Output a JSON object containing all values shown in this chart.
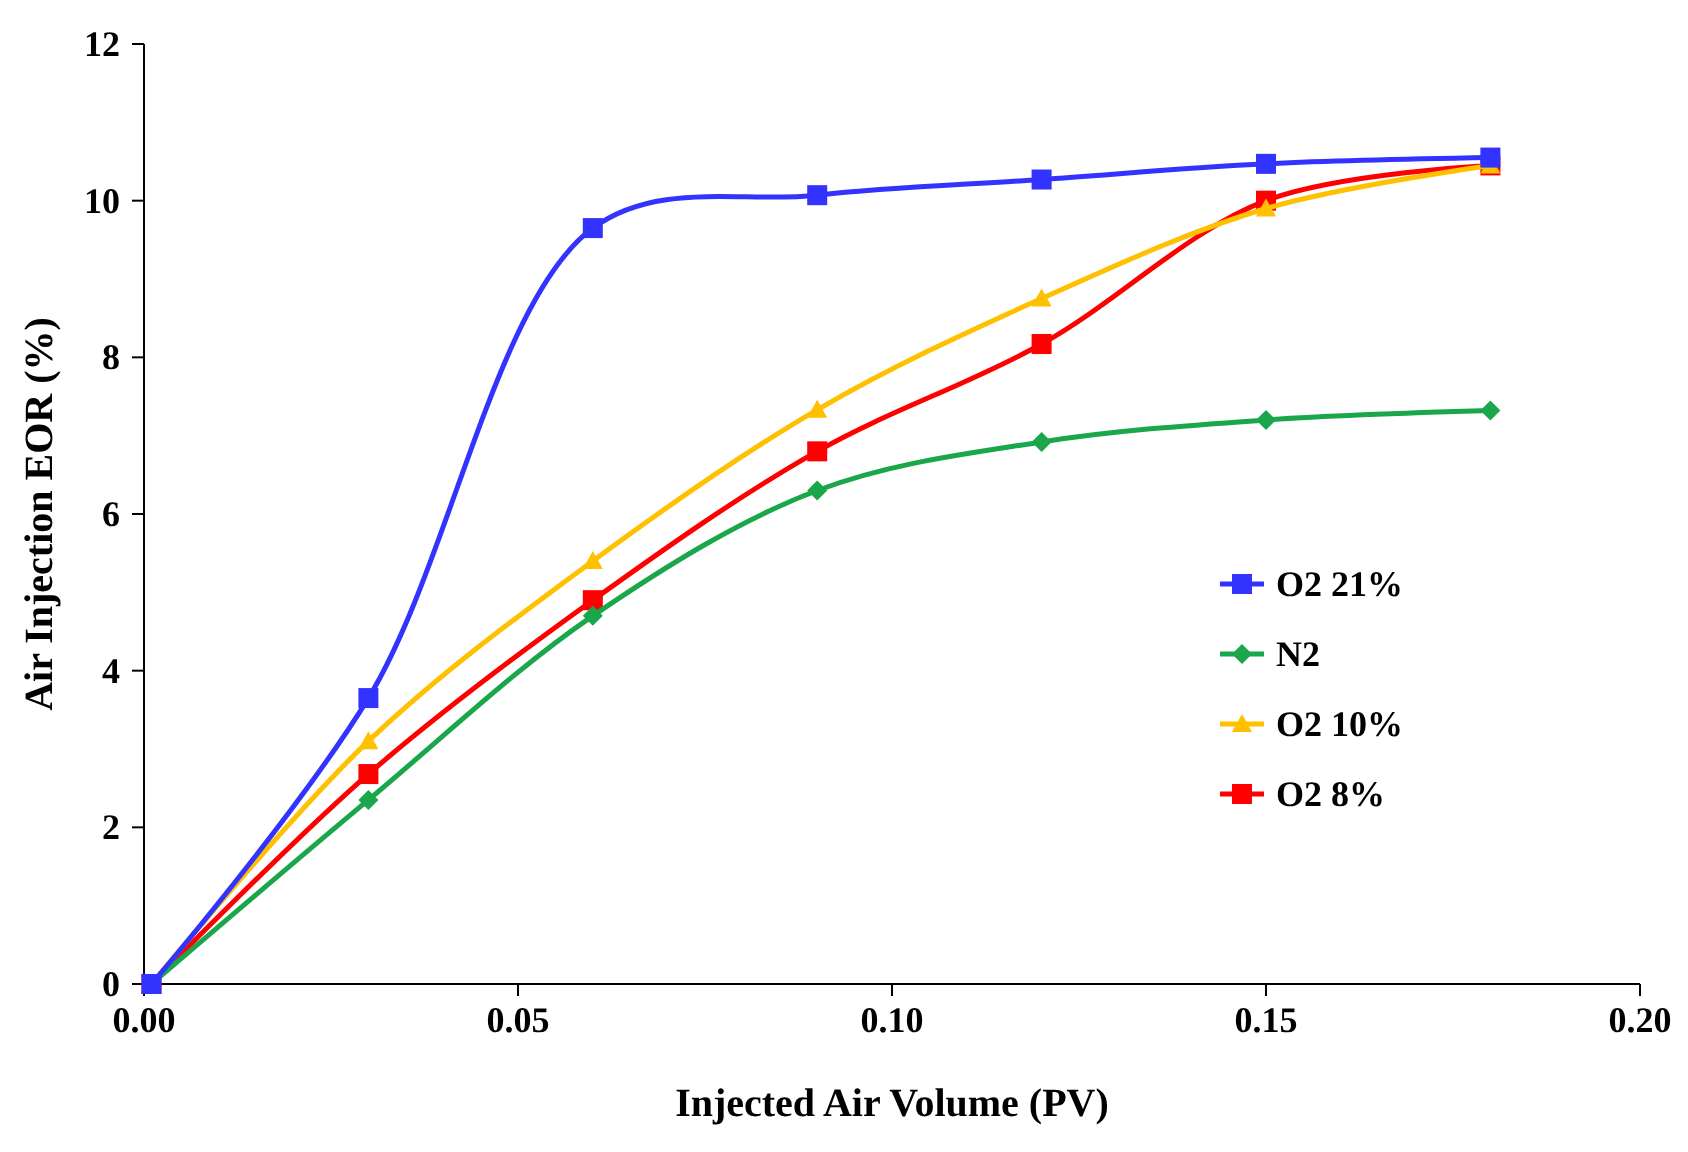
{
  "chart_data": {
    "type": "line",
    "xlabel": "Injected Air Volume (PV)",
    "ylabel": "Air Injection EOR (%)",
    "x": [
      0.001,
      0.03,
      0.06,
      0.09,
      0.12,
      0.15,
      0.18
    ],
    "series": [
      {
        "name": "O2 21%",
        "color": "#3333ff",
        "marker": "square",
        "values": [
          0,
          3.65,
          9.65,
          10.07,
          10.27,
          10.47,
          10.55
        ]
      },
      {
        "name": "N2",
        "color": "#1aa64a",
        "marker": "diamond",
        "values": [
          0,
          2.35,
          4.7,
          6.3,
          6.92,
          7.2,
          7.32
        ]
      },
      {
        "name": "O2 10%",
        "color": "#ffc000",
        "marker": "triangle",
        "values": [
          0,
          3.1,
          5.4,
          7.33,
          8.75,
          9.9,
          10.45
        ]
      },
      {
        "name": "O2 8%",
        "color": "#ff0000",
        "marker": "square",
        "values": [
          0,
          2.68,
          4.9,
          6.8,
          8.17,
          10.0,
          10.45
        ]
      }
    ],
    "xlim": [
      0,
      0.2
    ],
    "xticks": [
      {
        "value": 0,
        "label": "0.00"
      },
      {
        "value": 0.05,
        "label": "0.05"
      },
      {
        "value": 0.1,
        "label": "0.10"
      },
      {
        "value": 0.15,
        "label": "0.15"
      },
      {
        "value": 0.2,
        "label": "0.20"
      }
    ],
    "ylim": [
      0,
      12
    ],
    "yticks": [
      0,
      2,
      4,
      6,
      8,
      10,
      12
    ],
    "grid": false,
    "legend": "right"
  }
}
